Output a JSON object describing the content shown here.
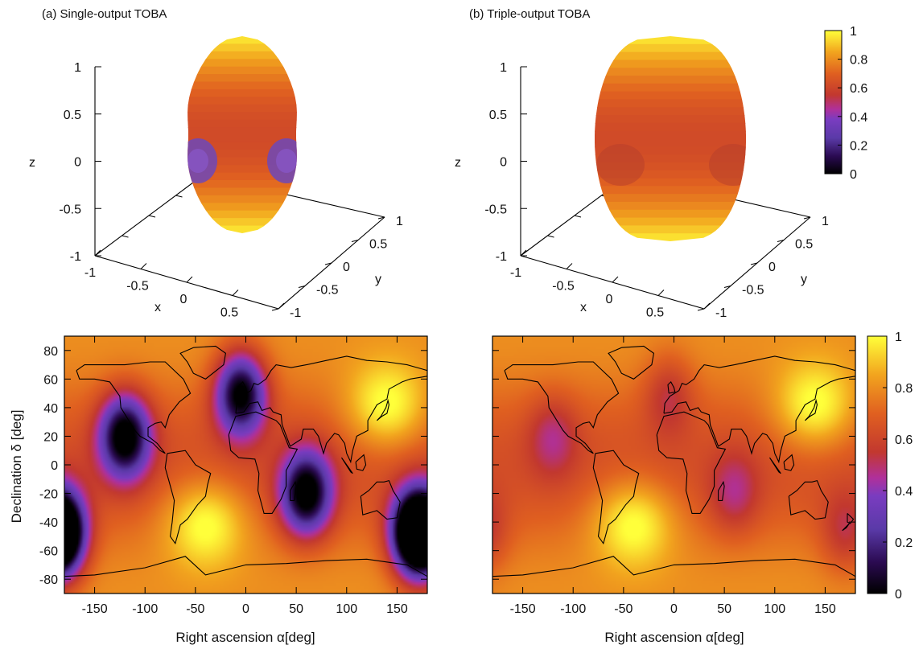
{
  "colors": {
    "palette_stops": [
      "#000000",
      "#3a0a5a",
      "#6a40b0",
      "#a0338f",
      "#c03d3a",
      "#e05d25",
      "#f08a1d",
      "#f6c41e",
      "#ffff3a"
    ],
    "text": "#111111",
    "axis": "#000000"
  },
  "panels": {
    "a_title": "(a) Single-output TOBA",
    "b_title": "(b) Triple-output TOBA"
  },
  "chart_data": [
    {
      "type": "surface3d",
      "title": "(a) Single-output TOBA",
      "xlabel": "x",
      "ylabel": "y",
      "zlabel": "z",
      "x_ticks": [
        "-1",
        "-0.5",
        "0",
        "0.5",
        "1"
      ],
      "y_ticks": [
        "-1",
        "-0.5",
        "0",
        "0.5",
        "1"
      ],
      "z_ticks": [
        "1",
        "0.5",
        "0",
        "-0.5",
        "-1"
      ],
      "xlim": [
        -1,
        1
      ],
      "ylim": [
        -1,
        1
      ],
      "zlim": [
        -1,
        1
      ],
      "shape": "peanut, pinched at equator with low-value lobes near x-axis",
      "color_range": [
        0,
        1
      ]
    },
    {
      "type": "surface3d",
      "title": "(b) Triple-output TOBA",
      "xlabel": "x",
      "ylabel": "y",
      "zlabel": "z",
      "x_ticks": [
        "-1",
        "-0.5",
        "0",
        "0.5",
        "1"
      ],
      "y_ticks": [
        "-1",
        "-0.5",
        "0",
        "0.5",
        "1"
      ],
      "z_ticks": [
        "1",
        "0.5",
        "0",
        "-0.5",
        "-1"
      ],
      "xlim": [
        -1,
        1
      ],
      "ylim": [
        -1,
        1
      ],
      "zlim": [
        -1,
        1
      ],
      "shape": "capsule, nearly uniform",
      "colorbar": {
        "ticks": [
          "1",
          "0.8",
          "0.6",
          "0.4",
          "0.2",
          "0"
        ],
        "range": [
          0,
          1
        ]
      }
    },
    {
      "type": "heatmap",
      "xlabel": "Right ascension α[deg]",
      "ylabel": "Declination δ [deg]",
      "xlim": [
        -180,
        180
      ],
      "ylim": [
        -90,
        90
      ],
      "x_ticks": [
        "-150",
        "-100",
        "-50",
        "0",
        "50",
        "100",
        "150"
      ],
      "y_ticks": [
        "80",
        "60",
        "40",
        "20",
        "0",
        "-20",
        "-40",
        "-60",
        "-80"
      ],
      "color_range": [
        0,
        1
      ],
      "minima": [
        {
          "ra": -120,
          "dec": 20,
          "value": 0.0
        },
        {
          "ra": -5,
          "dec": 50,
          "value": 0.0
        },
        {
          "ra": 60,
          "dec": -20,
          "value": 0.0
        },
        {
          "ra": 170,
          "dec": -48,
          "value": 0.0
        },
        {
          "ra": -185,
          "dec": -48,
          "value": 0.0
        }
      ],
      "maxima": [
        {
          "ra": -40,
          "dec": -40,
          "value": 1.0
        },
        {
          "ra": 140,
          "dec": 40,
          "value": 1.0
        }
      ]
    },
    {
      "type": "heatmap",
      "xlabel": "Right ascension α[deg]",
      "xlim": [
        -180,
        180
      ],
      "ylim": [
        -90,
        90
      ],
      "x_ticks": [
        "-150",
        "-100",
        "-50",
        "0",
        "50",
        "100",
        "150"
      ],
      "colorbar": {
        "ticks": [
          "1",
          "0.8",
          "0.6",
          "0.4",
          "0.2",
          "0"
        ],
        "range": [
          0,
          1
        ]
      },
      "minima": [
        {
          "ra": -120,
          "dec": 20,
          "value": 0.55
        },
        {
          "ra": -5,
          "dec": 50,
          "value": 0.55
        },
        {
          "ra": 60,
          "dec": -20,
          "value": 0.55
        },
        {
          "ra": 170,
          "dec": -48,
          "value": 0.55
        }
      ],
      "maxima": [
        {
          "ra": -40,
          "dec": -40,
          "value": 1.0
        },
        {
          "ra": 140,
          "dec": 40,
          "value": 1.0
        }
      ]
    }
  ]
}
